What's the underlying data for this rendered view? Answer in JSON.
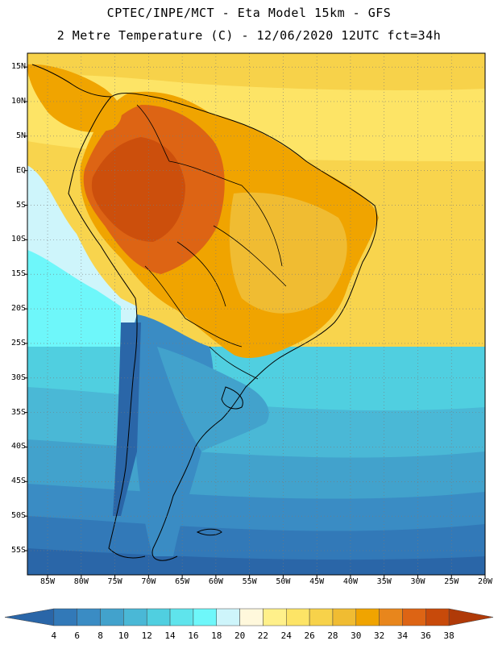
{
  "title": {
    "line1": "CPTEC/INPE/MCT -  Eta Model 15km - GFS",
    "line2": "2 Metre Temperature (C) - 12/06/2020 12UTC fct=34h"
  },
  "lat_labels": [
    "15N",
    "10N",
    "5N",
    "EQ",
    "5S",
    "10S",
    "15S",
    "20S",
    "25S",
    "30S",
    "35S",
    "40S",
    "45S",
    "50S",
    "55S"
  ],
  "lat_values": [
    15,
    10,
    5,
    0,
    -5,
    -10,
    -15,
    -20,
    -25,
    -30,
    -35,
    -40,
    -45,
    -50,
    -55
  ],
  "lon_labels": [
    "85W",
    "80W",
    "75W",
    "70W",
    "65W",
    "60W",
    "55W",
    "50W",
    "45W",
    "40W",
    "35W",
    "30W",
    "25W",
    "20W"
  ],
  "lon_values": [
    -85,
    -80,
    -75,
    -70,
    -65,
    -60,
    -55,
    -50,
    -45,
    -40,
    -35,
    -30,
    -25,
    -20
  ],
  "colorbar": {
    "values": [
      "4",
      "6",
      "8",
      "10",
      "12",
      "14",
      "16",
      "18",
      "20",
      "22",
      "24",
      "26",
      "28",
      "30",
      "32",
      "34",
      "36",
      "38"
    ],
    "colors": [
      "#2a66a8",
      "#3279b8",
      "#3a8cc4",
      "#42a2cc",
      "#4ab8d6",
      "#50cfe0",
      "#5fe4ec",
      "#6ef7fa",
      "#cef5fb",
      "#fff8dc",
      "#fff08a",
      "#fde466",
      "#f7d24a",
      "#f0bc32",
      "#f0a400",
      "#e8861c",
      "#dd6414",
      "#c84a0a",
      "#b03a08"
    ]
  },
  "icons": {
    "colorbar_left": "arrow-left-icon",
    "colorbar_right": "arrow-right-icon"
  }
}
